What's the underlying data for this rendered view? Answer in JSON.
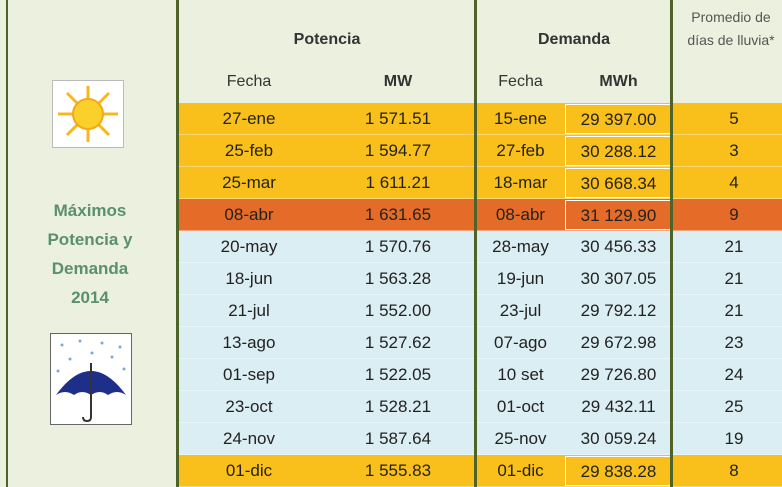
{
  "side": {
    "title": "Máximos Potencia y Demanda 2014"
  },
  "table": {
    "groups": [
      "Potencia",
      "Demanda",
      "Promedio de días de lluvia*"
    ],
    "columns": [
      "Fecha",
      "MW",
      "Fecha",
      "MWh"
    ],
    "rows": [
      [
        "27-ene",
        "1 571.51",
        "15-ene",
        "29 397.00",
        "5"
      ],
      [
        "25-feb",
        "1 594.77",
        "27-feb",
        "30 288.12",
        "3"
      ],
      [
        "25-mar",
        "1 611.21",
        "18-mar",
        "30 668.34",
        "4"
      ],
      [
        "08-abr",
        "1 631.65",
        "08-abr",
        "31 129.90",
        "9"
      ],
      [
        "20-may",
        "1 570.76",
        "28-may",
        "30 456.33",
        "21"
      ],
      [
        "18-jun",
        "1 563.28",
        "19-jun",
        "30 307.05",
        "21"
      ],
      [
        "21-jul",
        "1 552.00",
        "23-jul",
        "29 792.12",
        "21"
      ],
      [
        "13-ago",
        "1 527.62",
        "07-ago",
        "29 672.98",
        "23"
      ],
      [
        "01-sep",
        "1 522.05",
        "10 set",
        "29 726.80",
        "24"
      ],
      [
        "23-oct",
        "1 528.21",
        "01-oct",
        "29 432.11",
        "25"
      ],
      [
        "24-nov",
        "1 587.64",
        "25-nov",
        "30 059.24",
        "19"
      ],
      [
        "01-dic",
        "1 555.83",
        "01-dic",
        "29 838.28",
        "8"
      ]
    ]
  }
}
